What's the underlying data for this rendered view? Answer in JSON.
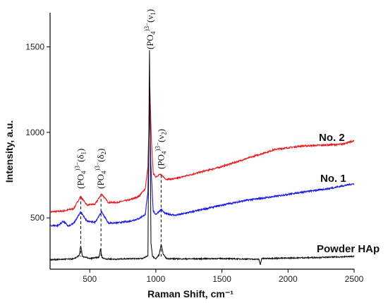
{
  "chart_data": {
    "type": "line",
    "xlabel": "Raman Shift, cm⁻¹",
    "ylabel": "Intensity, a.u.",
    "xlim": [
      200,
      2500
    ],
    "ylim": [
      200,
      1700
    ],
    "x_ticks": [
      500,
      1000,
      1500,
      2000,
      2500
    ],
    "x_tick_labels": [
      "500",
      "1000",
      "1500",
      "2000",
      "2500"
    ],
    "y_ticks": [
      500,
      1000,
      1500
    ],
    "y_tick_labels": [
      "500",
      "1000",
      "1500"
    ],
    "grid": false,
    "series": [
      {
        "name": "No. 2",
        "color": "#e8191e",
        "x": [
          200,
          300,
          380,
          430,
          480,
          540,
          590,
          640,
          700,
          800,
          870,
          920,
          940,
          955,
          965,
          980,
          1000,
          1030,
          1050,
          1080,
          1150,
          1300,
          1500,
          1700,
          1900,
          2100,
          2250,
          2400,
          2500
        ],
        "y": [
          535,
          540,
          555,
          625,
          575,
          580,
          640,
          590,
          590,
          605,
          625,
          670,
          800,
          1260,
          980,
          760,
          740,
          755,
          745,
          725,
          730,
          760,
          800,
          850,
          900,
          920,
          925,
          930,
          950
        ]
      },
      {
        "name": "No. 1",
        "color": "#1a1ae0",
        "x": [
          200,
          260,
          300,
          340,
          380,
          430,
          480,
          540,
          590,
          640,
          700,
          800,
          870,
          920,
          940,
          952,
          962,
          980,
          1000,
          1040,
          1070,
          1150,
          1300,
          1500,
          1700,
          1900,
          2100,
          2300,
          2500
        ],
        "y": [
          455,
          455,
          480,
          450,
          470,
          535,
          480,
          475,
          535,
          470,
          470,
          480,
          495,
          520,
          650,
          1200,
          820,
          540,
          520,
          550,
          525,
          515,
          540,
          575,
          605,
          625,
          650,
          670,
          700
        ]
      },
      {
        "name": "Powder HAp",
        "color": "#111111",
        "x": [
          200,
          300,
          380,
          420,
          432,
          445,
          500,
          570,
          582,
          592,
          620,
          700,
          800,
          900,
          940,
          952,
          958,
          963,
          975,
          1000,
          1025,
          1040,
          1055,
          1080,
          1200,
          1500,
          1780,
          1790,
          1800,
          2000,
          2200,
          2400,
          2500
        ],
        "y": [
          255,
          258,
          260,
          280,
          335,
          275,
          262,
          270,
          320,
          268,
          260,
          258,
          262,
          262,
          280,
          1480,
          900,
          350,
          275,
          260,
          285,
          345,
          290,
          262,
          260,
          262,
          258,
          225,
          262,
          265,
          268,
          272,
          275
        ]
      }
    ],
    "series_labels": [
      {
        "series": "No. 2",
        "text": "No. 2"
      },
      {
        "series": "No. 1",
        "text": "No. 1"
      },
      {
        "series": "Powder HAp",
        "text": "Powder HAp"
      }
    ],
    "annotations": [
      {
        "x": 432,
        "base": "(PO",
        "sub": "4",
        "sup": ")3−",
        "tail": "(δ",
        "tail_sub": "1",
        "end": ")"
      },
      {
        "x": 585,
        "base": "(PO",
        "sub": "4",
        "sup": ")3−",
        "tail": "(δ",
        "tail_sub": "2",
        "end": ")"
      },
      {
        "x": 958,
        "base": "(PO",
        "sub": "4",
        "sup": ")3−",
        "tail": "(ν",
        "tail_sub": "1",
        "end": ")"
      },
      {
        "x": 1040,
        "base": "(PO",
        "sub": "4",
        "sup": ")3−",
        "tail": "(ν",
        "tail_sub": "2",
        "end": ")"
      }
    ],
    "dashed_lines": [
      {
        "x": 432,
        "y_top": 625
      },
      {
        "x": 585,
        "y_top": 640
      },
      {
        "x": 1040,
        "y_top": 750
      }
    ]
  }
}
